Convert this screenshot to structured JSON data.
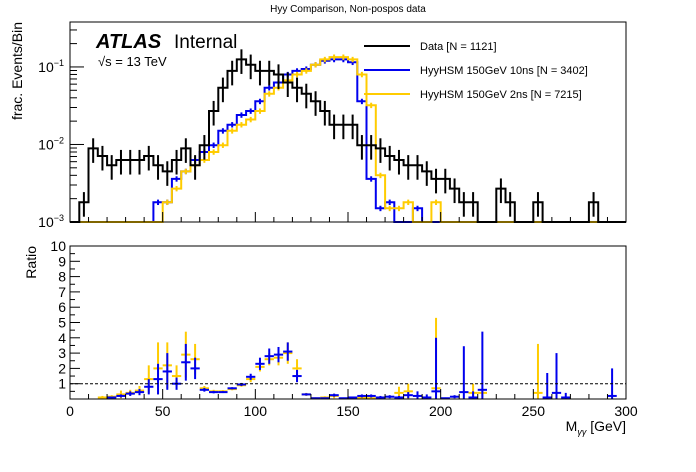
{
  "title": "Hyy Comparison, Non-pospos data",
  "atlas_label": "ATLAS",
  "atlas_sublabel": "Internal",
  "energy_label": "√s = 13 TeV",
  "colors": {
    "data": "#000000",
    "sig10ns": "#0000ee",
    "sig2ns": "#ffcc00"
  },
  "legend": [
    {
      "label": "Data [N = 1121]",
      "series": "data"
    },
    {
      "label": "HyyHSM 150GeV 10ns [N = 3402]",
      "series": "sig10ns"
    },
    {
      "label": "HyyHSM 150GeV 2ns [N = 7215]",
      "series": "sig2ns"
    }
  ],
  "chart_data": [
    {
      "type": "line",
      "subtype": "step-histogram",
      "panel": "top",
      "title": "Hyy Comparison, Non-pospos data",
      "xlabel": "M_γγ [GeV]",
      "ylabel": "frac. Events/Bin",
      "yscale": "log",
      "xlim": [
        0,
        300
      ],
      "ylim": [
        0.001,
        0.38
      ],
      "ytick_labels": [
        "10^-3",
        "10^-2",
        "10^-1"
      ],
      "bin_width": 5,
      "x": [
        2.5,
        7.5,
        12.5,
        17.5,
        22.5,
        27.5,
        32.5,
        37.5,
        42.5,
        47.5,
        52.5,
        57.5,
        62.5,
        67.5,
        72.5,
        77.5,
        82.5,
        87.5,
        92.5,
        97.5,
        102.5,
        107.5,
        112.5,
        117.5,
        122.5,
        127.5,
        132.5,
        137.5,
        142.5,
        147.5,
        152.5,
        157.5,
        162.5,
        167.5,
        172.5,
        177.5,
        182.5,
        187.5,
        192.5,
        197.5,
        202.5,
        207.5,
        212.5,
        217.5,
        222.5,
        227.5,
        232.5,
        237.5,
        242.5,
        247.5,
        252.5,
        257.5,
        262.5,
        267.5,
        272.5,
        277.5,
        282.5,
        287.5,
        292.5,
        297.5
      ],
      "series": [
        {
          "name": "Data [N = 1121]",
          "key": "data",
          "values": [
            0,
            0.0018,
            0.0089,
            0.0071,
            0.0054,
            0.0063,
            0.0063,
            0.0063,
            0.0071,
            0.0054,
            0.0045,
            0.0063,
            0.0089,
            0.0054,
            0.0098,
            0.027,
            0.054,
            0.089,
            0.125,
            0.107,
            0.089,
            0.089,
            0.08,
            0.063,
            0.054,
            0.045,
            0.036,
            0.027,
            0.018,
            0.018,
            0.018,
            0.0098,
            0.0098,
            0.0089,
            0.0071,
            0.0063,
            0.0054,
            0.0054,
            0.0045,
            0.0036,
            0.0036,
            0.0027,
            0.0018,
            0.0018,
            0,
            0,
            0.0027,
            0.0018,
            0,
            0,
            0.0018,
            0,
            0,
            0,
            0,
            0,
            0.0018,
            0,
            0,
            0
          ],
          "errors": true
        },
        {
          "name": "HyyHSM 150GeV 10ns [N = 3402]",
          "key": "sig10ns",
          "values": [
            0,
            0,
            0,
            0,
            0,
            0,
            0,
            0,
            0,
            0.0018,
            0.0018,
            0.0036,
            0.0045,
            0.0063,
            0.008,
            0.0098,
            0.015,
            0.018,
            0.024,
            0.027,
            0.036,
            0.054,
            0.063,
            0.08,
            0.089,
            0.094,
            0.107,
            0.12,
            0.125,
            0.125,
            0.115,
            0.036,
            0.0036,
            0.0015,
            0.0018,
            0,
            0,
            0.0015,
            0,
            0,
            0,
            0,
            0,
            0,
            0,
            0,
            0,
            0,
            0,
            0,
            0,
            0,
            0,
            0,
            0,
            0,
            0,
            0,
            0,
            0
          ],
          "errors": true
        },
        {
          "name": "HyyHSM 150GeV 2ns [N = 7215]",
          "key": "sig2ns",
          "values": [
            0,
            0,
            0,
            0,
            0,
            0,
            0,
            0,
            0,
            0,
            0.0018,
            0.0027,
            0.0045,
            0.0054,
            0.0063,
            0.008,
            0.0098,
            0.015,
            0.018,
            0.021,
            0.027,
            0.045,
            0.054,
            0.067,
            0.08,
            0.089,
            0.107,
            0.125,
            0.134,
            0.134,
            0.125,
            0.08,
            0.032,
            0.004,
            0.0015,
            0.0015,
            0.0018,
            0,
            0,
            0.0018,
            0,
            0,
            0,
            0,
            0,
            0,
            0,
            0,
            0,
            0,
            0,
            0,
            0,
            0,
            0,
            0,
            0,
            0,
            0,
            0
          ],
          "errors": true
        }
      ]
    },
    {
      "type": "scatter",
      "subtype": "ratio-points-with-errorbars",
      "panel": "bottom",
      "xlabel": "M_γγ [GeV]",
      "ylabel": "Ratio",
      "xlim": [
        0,
        300
      ],
      "ylim": [
        0,
        10
      ],
      "xtick_labels": [
        "0",
        "50",
        "100",
        "150",
        "200",
        "250",
        "300"
      ],
      "ytick_labels": [
        "1",
        "2",
        "3",
        "4",
        "5",
        "6",
        "7",
        "8",
        "9",
        "10"
      ],
      "reference_line": 1,
      "series": [
        {
          "name": "HyyHSM 150GeV 2ns / Data",
          "key": "sig2ns",
          "points": [
            {
              "x": 17.5,
              "y": 0.1,
              "err": 0.1
            },
            {
              "x": 22.5,
              "y": 0.15,
              "err": 0.1
            },
            {
              "x": 27.5,
              "y": 0.3,
              "err": 0.25
            },
            {
              "x": 32.5,
              "y": 0.4,
              "err": 0.2
            },
            {
              "x": 37.5,
              "y": 0.55,
              "err": 0.3
            },
            {
              "x": 42.5,
              "y": 1.3,
              "err": 0.9
            },
            {
              "x": 47.5,
              "y": 2.0,
              "err": 1.7
            },
            {
              "x": 52.5,
              "y": 2.2,
              "err": 1.5
            },
            {
              "x": 57.5,
              "y": 1.5,
              "err": 0.7
            },
            {
              "x": 62.5,
              "y": 2.9,
              "err": 1.5
            },
            {
              "x": 67.5,
              "y": 2.6,
              "err": 1.0
            },
            {
              "x": 72.5,
              "y": 0.7,
              "err": 0.15
            },
            {
              "x": 77.5,
              "y": 0.5,
              "err": 0.1
            },
            {
              "x": 82.5,
              "y": 0.5,
              "err": 0.08
            },
            {
              "x": 87.5,
              "y": 0.65,
              "err": 0.08
            },
            {
              "x": 92.5,
              "y": 0.9,
              "err": 0.1
            },
            {
              "x": 97.5,
              "y": 1.3,
              "err": 0.2
            },
            {
              "x": 102.5,
              "y": 2.1,
              "err": 0.3
            },
            {
              "x": 107.5,
              "y": 2.6,
              "err": 0.4
            },
            {
              "x": 112.5,
              "y": 2.7,
              "err": 0.5
            },
            {
              "x": 117.5,
              "y": 3.0,
              "err": 0.7
            },
            {
              "x": 122.5,
              "y": 2.0,
              "err": 0.6
            },
            {
              "x": 127.5,
              "y": 0.3,
              "err": 0.1
            },
            {
              "x": 132.5,
              "y": 0.05,
              "err": 0.05
            },
            {
              "x": 137.5,
              "y": 0.1,
              "err": 0.08
            },
            {
              "x": 142.5,
              "y": 0.2,
              "err": 0.15
            },
            {
              "x": 152.5,
              "y": 0.05,
              "err": 0.05
            },
            {
              "x": 157.5,
              "y": 0.1,
              "err": 0.1
            },
            {
              "x": 162.5,
              "y": 0.05,
              "err": 0.05
            },
            {
              "x": 177.5,
              "y": 0.4,
              "err": 0.4
            },
            {
              "x": 182.5,
              "y": 0.5,
              "err": 0.5
            },
            {
              "x": 197.5,
              "y": 0.7,
              "err": 4.6
            },
            {
              "x": 217.5,
              "y": 0.4,
              "err": 0.6
            },
            {
              "x": 222.5,
              "y": 0.4,
              "err": 0.3
            },
            {
              "x": 252.5,
              "y": 0.4,
              "err": 3.2
            }
          ]
        },
        {
          "name": "HyyHSM 150GeV 10ns / Data",
          "key": "sig10ns",
          "points": [
            {
              "x": 22.5,
              "y": 0.1,
              "err": 0.05
            },
            {
              "x": 27.5,
              "y": 0.2,
              "err": 0.1
            },
            {
              "x": 32.5,
              "y": 0.35,
              "err": 0.15
            },
            {
              "x": 37.5,
              "y": 0.45,
              "err": 0.2
            },
            {
              "x": 42.5,
              "y": 0.8,
              "err": 0.5
            },
            {
              "x": 47.5,
              "y": 1.3,
              "err": 1.0
            },
            {
              "x": 52.5,
              "y": 1.8,
              "err": 1.2
            },
            {
              "x": 57.5,
              "y": 1.0,
              "err": 0.4
            },
            {
              "x": 62.5,
              "y": 2.4,
              "err": 1.2
            },
            {
              "x": 67.5,
              "y": 2.0,
              "err": 0.7
            },
            {
              "x": 72.5,
              "y": 0.6,
              "err": 0.12
            },
            {
              "x": 77.5,
              "y": 0.45,
              "err": 0.08
            },
            {
              "x": 82.5,
              "y": 0.45,
              "err": 0.06
            },
            {
              "x": 87.5,
              "y": 0.7,
              "err": 0.07
            },
            {
              "x": 92.5,
              "y": 0.95,
              "err": 0.1
            },
            {
              "x": 97.5,
              "y": 1.45,
              "err": 0.2
            },
            {
              "x": 102.5,
              "y": 2.3,
              "err": 0.4
            },
            {
              "x": 107.5,
              "y": 2.8,
              "err": 0.5
            },
            {
              "x": 112.5,
              "y": 2.9,
              "err": 0.5
            },
            {
              "x": 117.5,
              "y": 3.1,
              "err": 0.6
            },
            {
              "x": 122.5,
              "y": 1.5,
              "err": 0.4
            },
            {
              "x": 127.5,
              "y": 0.3,
              "err": 0.08
            },
            {
              "x": 132.5,
              "y": 0.05,
              "err": 0.05
            },
            {
              "x": 137.5,
              "y": 0.05,
              "err": 0.05
            },
            {
              "x": 142.5,
              "y": 0.25,
              "err": 0.1
            },
            {
              "x": 147.5,
              "y": 0.05,
              "err": 0.05
            },
            {
              "x": 152.5,
              "y": 0.1,
              "err": 0.05
            },
            {
              "x": 157.5,
              "y": 0.2,
              "err": 0.1
            },
            {
              "x": 162.5,
              "y": 0.2,
              "err": 0.1
            },
            {
              "x": 167.5,
              "y": 0.1,
              "err": 0.1
            },
            {
              "x": 172.5,
              "y": 0.15,
              "err": 0.1
            },
            {
              "x": 177.5,
              "y": 0.1,
              "err": 0.1
            },
            {
              "x": 182.5,
              "y": 0.25,
              "err": 0.2
            },
            {
              "x": 187.5,
              "y": 0.2,
              "err": 0.3
            },
            {
              "x": 192.5,
              "y": 0.1,
              "err": 0.2
            },
            {
              "x": 197.5,
              "y": 0.5,
              "err": 3.5
            },
            {
              "x": 202.5,
              "y": 0.05,
              "err": 0.05
            },
            {
              "x": 207.5,
              "y": 0.15,
              "err": 0.1
            },
            {
              "x": 212.5,
              "y": 0.45,
              "err": 3.0
            },
            {
              "x": 217.5,
              "y": 0.1,
              "err": 0.4
            },
            {
              "x": 222.5,
              "y": 0.6,
              "err": 3.8
            },
            {
              "x": 257.5,
              "y": 0.1,
              "err": 1.6
            },
            {
              "x": 262.5,
              "y": 0.4,
              "err": 2.6
            },
            {
              "x": 267.5,
              "y": 0.1,
              "err": 0.3
            },
            {
              "x": 292.5,
              "y": 0.2,
              "err": 1.8
            }
          ]
        }
      ]
    }
  ]
}
